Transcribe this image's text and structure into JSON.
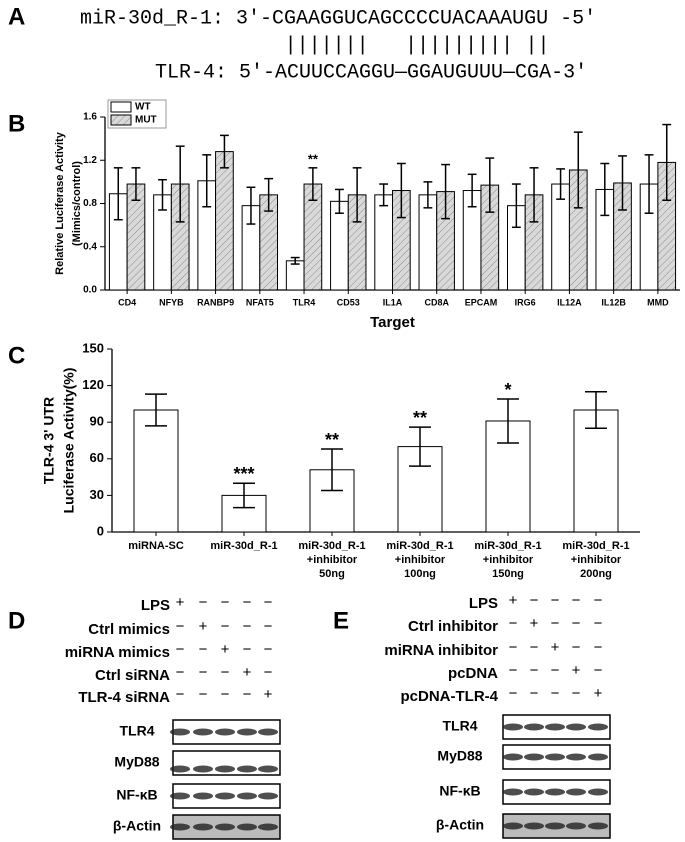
{
  "panel_labels": [
    "A",
    "B",
    "C",
    "D",
    "E"
  ],
  "sequence": {
    "mirna": "miR-30d_R-1: 3'-CGAAGGUCAGCCCCUACAAAUGU -5'",
    "pairing": [
      "|||||||",
      "|||||||||",
      "||"
    ],
    "target": "TLR-4: 5'-ACUUCCAGGU—GGAUGUUU—CGA-3'"
  },
  "chart_data": [
    {
      "type": "bar",
      "ylabel": [
        "Relative Luciferase Activity",
        "(Mimics/control)"
      ],
      "xlabel": "Target",
      "categories": [
        "CD4",
        "NFYB",
        "RANBP9",
        "NFAT5",
        "TLR4",
        "CD53",
        "IL1A",
        "CD8A",
        "EPCAM",
        "IRG6",
        "IL12A",
        "IL12B",
        "MMD"
      ],
      "series": [
        {
          "name": "WT",
          "color": "#ffffff",
          "values": [
            0.89,
            0.88,
            1.01,
            0.78,
            0.27,
            0.82,
            0.88,
            0.88,
            0.92,
            0.78,
            0.98,
            0.93,
            0.98
          ],
          "errors": [
            0.24,
            0.14,
            0.24,
            0.17,
            0.03,
            0.11,
            0.1,
            0.12,
            0.15,
            0.2,
            0.14,
            0.24,
            0.27
          ]
        },
        {
          "name": "MUT",
          "color": "#d9d9d9",
          "hatch": true,
          "values": [
            0.98,
            0.98,
            1.28,
            0.88,
            0.98,
            0.88,
            0.92,
            0.91,
            0.97,
            0.88,
            1.11,
            0.99,
            1.18
          ],
          "errors": [
            0.15,
            0.35,
            0.15,
            0.15,
            0.15,
            0.25,
            0.25,
            0.25,
            0.25,
            0.25,
            0.35,
            0.25,
            0.35
          ],
          "significance": [
            null,
            null,
            null,
            null,
            "**",
            null,
            null,
            null,
            null,
            null,
            null,
            null,
            null
          ]
        }
      ],
      "ylim": [
        0,
        1.6
      ],
      "yticks": [
        {
          "value": 0,
          "label": "0.0"
        },
        0.4,
        0.8,
        1.2,
        1.6
      ],
      "legend": "upper left"
    },
    {
      "type": "bar",
      "ylabel": [
        "TLR-4 3' UTR",
        "Luciferase Activity(%)"
      ],
      "categories": [
        [
          "miRNA-SC"
        ],
        [
          "miR-30d_R-1"
        ],
        [
          "miR-30d_R-1",
          "+inhibitor",
          "50ng"
        ],
        [
          "miR-30d_R-1",
          "+inhibitor",
          "100ng"
        ],
        [
          "miR-30d_R-1",
          "+inhibitor",
          "150ng"
        ],
        [
          "miR-30d_R-1",
          "+inhibitor",
          "200ng"
        ]
      ],
      "values": [
        100,
        30,
        51,
        70,
        91,
        100
      ],
      "errors": [
        13,
        10,
        17,
        16,
        18,
        15
      ],
      "significance": [
        null,
        "***",
        "**",
        "**",
        "*",
        null
      ],
      "color": "#ffffff",
      "ylim": [
        0,
        150
      ],
      "yticks": [
        0,
        30,
        60,
        90,
        120,
        150
      ]
    }
  ],
  "blots": [
    {
      "treatments": [
        {
          "name": "LPS",
          "signs": [
            "+",
            "−",
            "−",
            "−",
            "−"
          ]
        },
        {
          "name": "Ctrl mimics",
          "signs": [
            "−",
            "+",
            "−",
            "−",
            "−"
          ]
        },
        {
          "name": "miRNA mimics",
          "signs": [
            "−",
            "−",
            "+",
            "−",
            "−"
          ]
        },
        {
          "name": "Ctrl siRNA",
          "signs": [
            "−",
            "−",
            "−",
            "+",
            "−"
          ]
        },
        {
          "name": "TLR-4  siRNA",
          "signs": [
            "−",
            "−",
            "−",
            "−",
            "+"
          ]
        }
      ],
      "bands": [
        "TLR4",
        "MyD88",
        "NF-κB",
        "β-Actin"
      ]
    },
    {
      "treatments": [
        {
          "name": "LPS",
          "signs": [
            "+",
            "−",
            "−",
            "−",
            "−"
          ]
        },
        {
          "name": "Ctrl inhibitor",
          "signs": [
            "−",
            "+",
            "−",
            "−",
            "−"
          ]
        },
        {
          "name": "miRNA inhibitor",
          "signs": [
            "−",
            "−",
            "+",
            "−",
            "−"
          ]
        },
        {
          "name": "pcDNA",
          "signs": [
            "−",
            "−",
            "−",
            "+",
            "−"
          ]
        },
        {
          "name": "pcDNA-TLR-4",
          "signs": [
            "−",
            "−",
            "−",
            "−",
            "+"
          ]
        }
      ],
      "bands": [
        "TLR4",
        "MyD88",
        "NF-κB",
        "β-Actin"
      ]
    }
  ]
}
